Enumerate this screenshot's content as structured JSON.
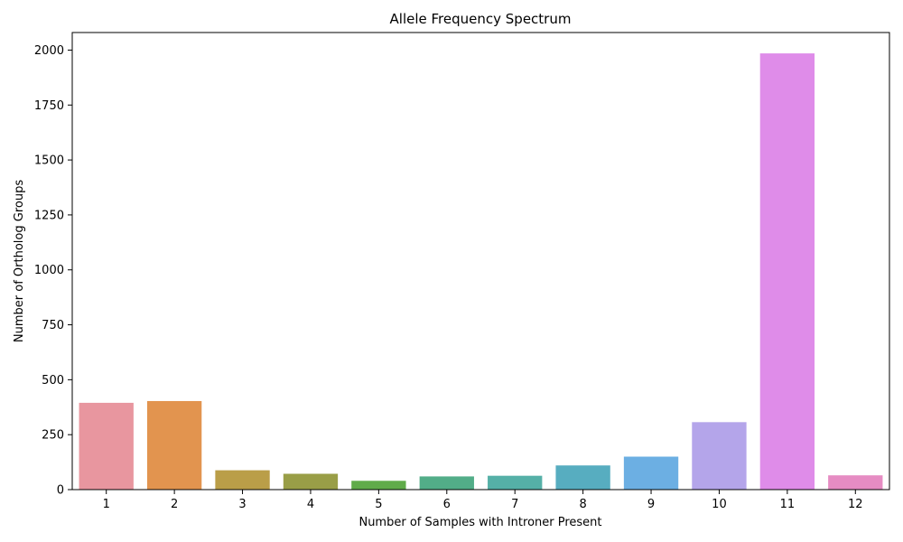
{
  "chart_data": {
    "type": "bar",
    "title": "Allele Frequency Spectrum",
    "xlabel": "Number of Samples with Introner Present",
    "ylabel": "Number of Ortholog Groups",
    "categories": [
      "1",
      "2",
      "3",
      "4",
      "5",
      "6",
      "7",
      "8",
      "9",
      "10",
      "11",
      "12"
    ],
    "values": [
      395,
      403,
      88,
      72,
      40,
      60,
      63,
      110,
      150,
      307,
      1985,
      65
    ],
    "colors": [
      "#e8969f",
      "#e2944f",
      "#ba9e48",
      "#999e47",
      "#60ab4a",
      "#52ad88",
      "#55b0a7",
      "#57adc0",
      "#6cafe3",
      "#b4a5ea",
      "#df8ce9",
      "#e68cc3"
    ],
    "ylim": [
      0,
      2080
    ],
    "yticks": [
      0,
      250,
      500,
      750,
      1000,
      1250,
      1500,
      1750,
      2000
    ],
    "grid": false,
    "legend": "none"
  }
}
